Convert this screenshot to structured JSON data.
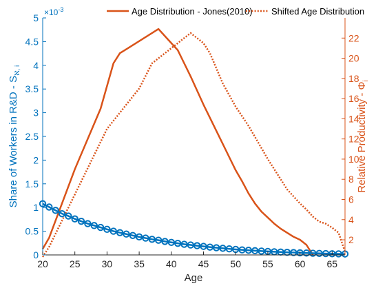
{
  "chart_data": {
    "type": "line",
    "xlabel": "Age",
    "y_left_label_main": "Share of Workers in R&D - S",
    "y_left_label_sub": "ℵ, i",
    "y_left_exponent_base": "×10",
    "y_left_exponent_power": "-3",
    "y_right_label_main": "Relative Productivity - Φ",
    "y_right_label_sub": "i",
    "xlim": [
      20,
      67
    ],
    "xticks": [
      "20",
      "25",
      "30",
      "35",
      "40",
      "45",
      "50",
      "55",
      "60",
      "65"
    ],
    "y_left_lim": [
      0,
      5
    ],
    "y_left_ticks": [
      "0",
      "0.5",
      "1",
      "1.5",
      "2",
      "2.5",
      "3",
      "3.5",
      "4",
      "4.5",
      "5"
    ],
    "y_right_lim": [
      0.5,
      24
    ],
    "y_right_ticks": [
      "2",
      "4",
      "6",
      "8",
      "10",
      "12",
      "14",
      "16",
      "18",
      "20",
      "22"
    ],
    "series": [
      {
        "name": "Age Distribution - Jones(2010)",
        "axis": "right",
        "style": "solid",
        "color": "#D95319",
        "x": [
          20,
          21,
          25,
          29,
          31,
          32,
          33,
          34,
          35,
          36,
          37,
          38,
          39,
          40,
          41,
          42,
          43,
          44,
          45,
          46,
          47,
          48,
          49,
          50,
          51,
          52,
          53,
          54,
          55,
          56,
          57,
          58,
          59,
          60,
          61,
          62
        ],
        "y": [
          1.1,
          2.2,
          9.0,
          15.0,
          19.5,
          20.5,
          20.9,
          21.3,
          21.7,
          22.1,
          22.5,
          22.9,
          22.2,
          21.5,
          20.8,
          19.5,
          18.2,
          16.8,
          15.4,
          14.1,
          12.8,
          11.5,
          10.2,
          8.9,
          7.8,
          6.6,
          5.6,
          4.8,
          4.2,
          3.6,
          3.1,
          2.7,
          2.3,
          2.0,
          1.5,
          0.5
        ]
      },
      {
        "name": "Shifted Age Distribution",
        "axis": "right",
        "style": "dotted",
        "color": "#D95319",
        "x": [
          20,
          21,
          25,
          30,
          35,
          37,
          38,
          40,
          42,
          43,
          44,
          45,
          46,
          47,
          48,
          50,
          52,
          55,
          57,
          58,
          60,
          61,
          62,
          63,
          64,
          65,
          66,
          67
        ],
        "y": [
          0.3,
          1.3,
          6.5,
          13.0,
          17.0,
          19.5,
          20.0,
          21.0,
          22.0,
          22.5,
          22.0,
          21.5,
          20.5,
          19.0,
          17.5,
          15.2,
          13.3,
          10.0,
          8.0,
          7.0,
          5.6,
          5.0,
          4.3,
          3.8,
          3.6,
          3.2,
          2.7,
          0.8
        ]
      },
      {
        "name": "Share of Workers in R&D",
        "axis": "left",
        "style": "markers",
        "color": "#0072BD",
        "x": [
          20,
          21,
          22,
          23,
          24,
          25,
          26,
          27,
          28,
          29,
          30,
          31,
          32,
          33,
          34,
          35,
          36,
          37,
          38,
          39,
          40,
          41,
          42,
          43,
          44,
          45,
          46,
          47,
          48,
          49,
          50,
          51,
          52,
          53,
          54,
          55,
          56,
          57,
          58,
          59,
          60,
          61,
          62,
          63,
          64,
          65,
          66,
          67
        ],
        "y": [
          1.08,
          1.01,
          0.94,
          0.87,
          0.82,
          0.76,
          0.71,
          0.66,
          0.62,
          0.58,
          0.54,
          0.5,
          0.47,
          0.44,
          0.41,
          0.38,
          0.355,
          0.33,
          0.31,
          0.285,
          0.265,
          0.245,
          0.225,
          0.21,
          0.195,
          0.18,
          0.165,
          0.152,
          0.14,
          0.128,
          0.117,
          0.107,
          0.098,
          0.089,
          0.081,
          0.074,
          0.067,
          0.061,
          0.055,
          0.05,
          0.045,
          0.04,
          0.036,
          0.032,
          0.028,
          0.025,
          0.022,
          0.02
        ]
      }
    ],
    "legend": [
      {
        "label": "Age Distribution - Jones(2010)",
        "style": "solid"
      },
      {
        "label": "Shifted Age Distribution",
        "style": "dotted"
      }
    ],
    "legend_position": "top",
    "grid": false,
    "colors": {
      "left_axis": "#0072BD",
      "right_axis": "#D95319",
      "x_axis": "#262626"
    }
  }
}
